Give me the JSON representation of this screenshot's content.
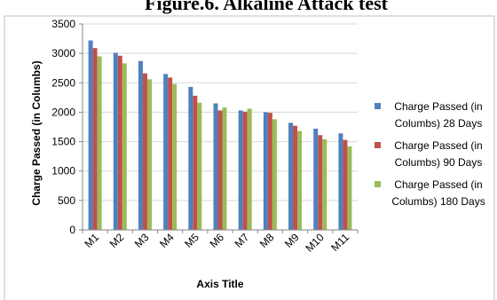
{
  "chart_data": {
    "type": "bar",
    "title": "Figure.6. Alkaline Attack test",
    "xlabel": "Axis Title",
    "ylabel": "Charge Passed  (in Columbs)",
    "ylim": [
      0,
      3500
    ],
    "yticks": [
      0,
      500,
      1000,
      1500,
      2000,
      2500,
      3000,
      3500
    ],
    "grid": true,
    "legend_position": "right",
    "categories": [
      "M1",
      "M2",
      "M3",
      "M4",
      "M5",
      "M6",
      "M7",
      "M8",
      "M9",
      "M10",
      "M11"
    ],
    "series": [
      {
        "name": "Charge Passed (in Columbs) 28 Days",
        "legend_lines": [
          "Charge Passed (in",
          "Columbs) 28 Days"
        ],
        "color": "#4F81BD",
        "values": [
          3220,
          3010,
          2870,
          2650,
          2430,
          2150,
          2030,
          2000,
          1820,
          1720,
          1640
        ]
      },
      {
        "name": "Charge Passed (in Columbs) 90 Days",
        "legend_lines": [
          "Charge Passed (in",
          "Columbs) 90 Days"
        ],
        "color": "#C0504D",
        "values": [
          3090,
          2960,
          2660,
          2590,
          2280,
          2030,
          2010,
          1990,
          1770,
          1610,
          1530
        ]
      },
      {
        "name": "Charge Passed (in Columbs) 180 Days",
        "legend_lines": [
          "Charge Passed (in",
          "Columbs) 180 Days"
        ],
        "color": "#9BBB59",
        "values": [
          2950,
          2830,
          2560,
          2480,
          2160,
          2080,
          2060,
          1880,
          1680,
          1540,
          1420
        ]
      }
    ]
  }
}
